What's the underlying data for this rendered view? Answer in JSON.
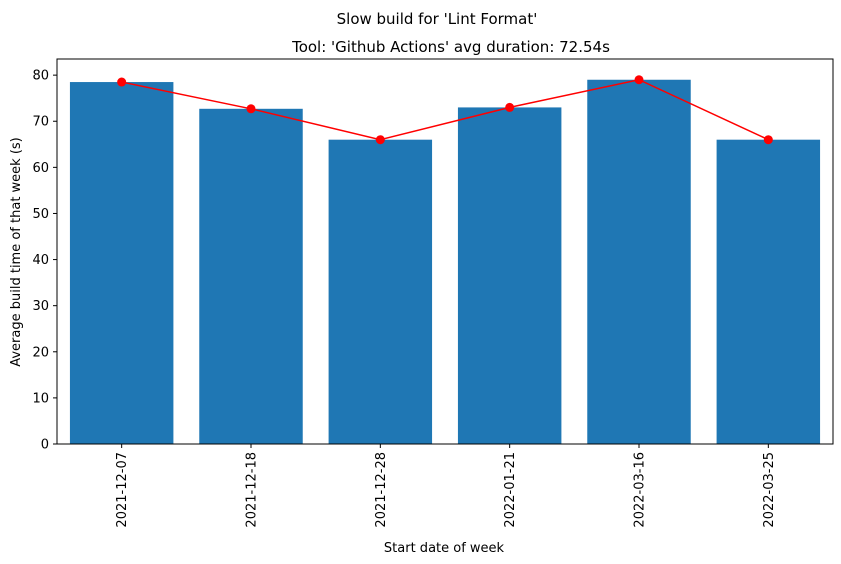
{
  "chart_data": {
    "type": "bar",
    "title": "Slow build for 'Lint Format'",
    "subtitle": "Tool: 'Github Actions' avg duration: 72.54s",
    "xlabel": "Start date of week",
    "ylabel": "Average build time of that week (s)",
    "categories": [
      "2021-12-07",
      "2021-12-18",
      "2021-12-28",
      "2022-01-21",
      "2022-03-16",
      "2022-03-25"
    ],
    "values": [
      78.5,
      72.7,
      66.0,
      73.0,
      79.0,
      66.0
    ],
    "ylim": [
      0,
      83.5
    ],
    "yticks": [
      0,
      10,
      20,
      30,
      40,
      50,
      60,
      70,
      80
    ],
    "bar_color": "#1f77b4",
    "line_color": "#ff0000",
    "overlay": "line-with-markers",
    "grid": false,
    "legend": "none"
  }
}
